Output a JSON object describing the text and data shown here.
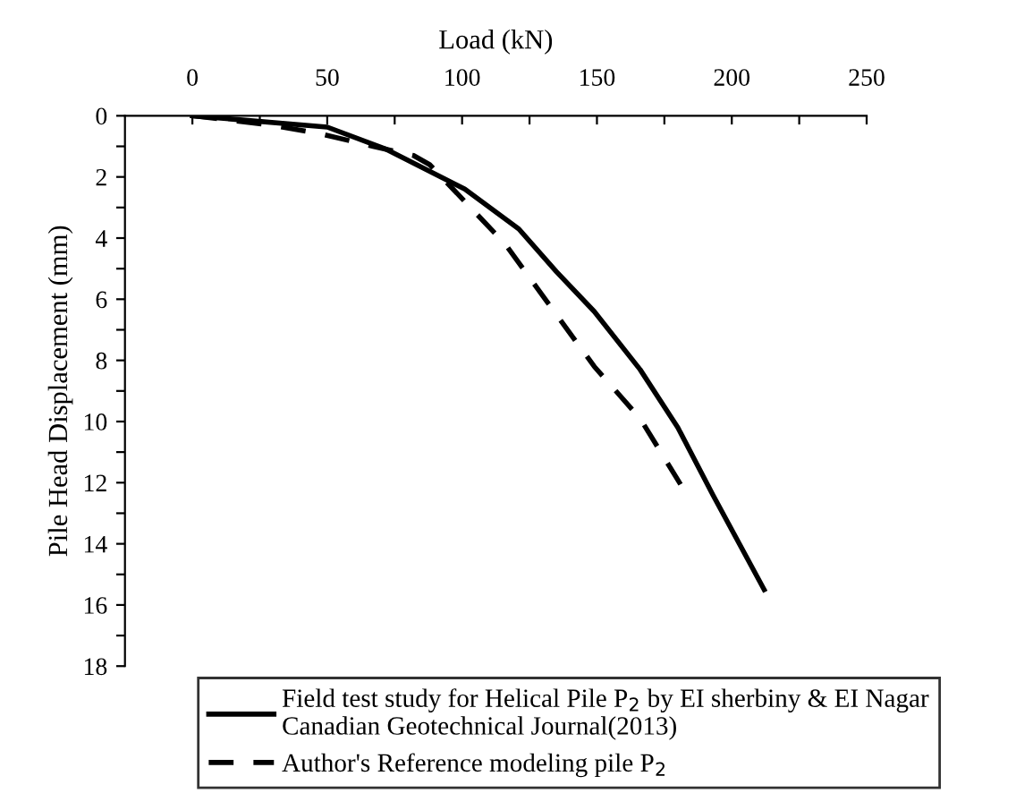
{
  "chart_data": {
    "type": "line",
    "xlabel": "Load (kN)",
    "ylabel": "Pile Head Displacement (mm)",
    "xlim": [
      -25,
      250
    ],
    "ylim": [
      18,
      0
    ],
    "xticks": [
      0,
      {
        "value": 25,
        "label": null
      },
      50,
      {
        "value": 75,
        "label": null
      },
      100,
      {
        "value": 125,
        "label": null
      },
      150,
      {
        "value": 175,
        "label": null
      },
      200,
      {
        "value": 225,
        "label": null
      },
      250
    ],
    "yticks": [
      0,
      {
        "value": 1,
        "label": null
      },
      2,
      {
        "value": 3,
        "label": null
      },
      4,
      {
        "value": 5,
        "label": null
      },
      6,
      {
        "value": 7,
        "label": null
      },
      8,
      {
        "value": 9,
        "label": null
      },
      10,
      {
        "value": 11,
        "label": null
      },
      12,
      {
        "value": 13,
        "label": null
      },
      14,
      {
        "value": 15,
        "label": null
      },
      16,
      {
        "value": 17,
        "label": null
      },
      18
    ],
    "grid": false,
    "legend": "bottom",
    "series": [
      {
        "name": "Field test study for Helical Pile P$_{2}$ by EI sherbiny & EI Nagar\nCanadian Geotechnical Journal(2013)",
        "color": "#000000",
        "line_style": "solid",
        "x": [
          0,
          50,
          72,
          101,
          121,
          135,
          149,
          166,
          180,
          193,
          212
        ],
        "values": [
          0,
          0.37,
          1.1,
          2.4,
          3.7,
          5.1,
          6.4,
          8.3,
          10.2,
          12.4,
          15.5
        ]
      },
      {
        "name": "Author's Reference modeling pile P$_{2}$",
        "color": "#000000",
        "line_style": "dashed",
        "x": [
          0,
          29,
          48,
          67,
          82,
          88,
          101,
          116,
          130,
          149,
          166,
          182
        ],
        "values": [
          0,
          0.3,
          0.6,
          1.0,
          1.3,
          1.6,
          2.8,
          4.2,
          5.9,
          8.2,
          9.9,
          12.2
        ]
      }
    ]
  }
}
